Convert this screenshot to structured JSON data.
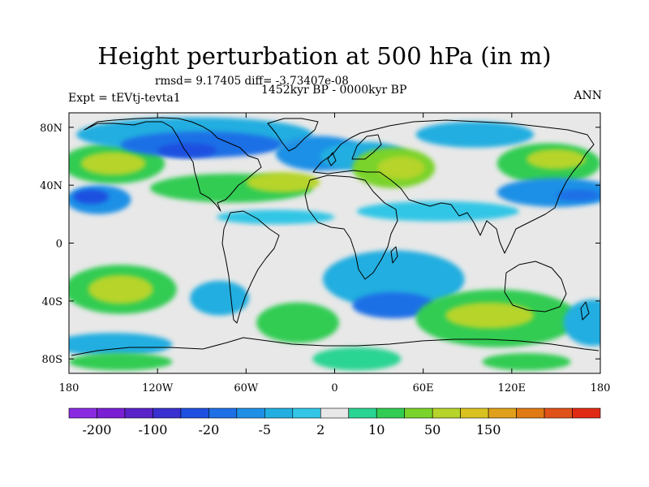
{
  "figure": {
    "title": "Height perturbation at 500 hPa (in m)",
    "stats": "rmsd= 9.17405 diff= -3.73407e-08",
    "period": "1452kyr BP - 0000kyr BP",
    "experiment": "Expt = tEVtj-tevta1",
    "season": "ANN"
  },
  "axes": {
    "x_ticks": [
      {
        "value": -180,
        "label": "180"
      },
      {
        "value": -120,
        "label": "120W"
      },
      {
        "value": -60,
        "label": "60W"
      },
      {
        "value": 0,
        "label": "0"
      },
      {
        "value": 60,
        "label": "60E"
      },
      {
        "value": 120,
        "label": "120E"
      },
      {
        "value": 180,
        "label": "180"
      }
    ],
    "y_ticks": [
      {
        "value": 80,
        "label": "80N"
      },
      {
        "value": 40,
        "label": "40N"
      },
      {
        "value": 0,
        "label": "0"
      },
      {
        "value": -40,
        "label": "40S"
      },
      {
        "value": -80,
        "label": "80S"
      }
    ],
    "lon_range": [
      -180,
      180
    ],
    "lat_range": [
      -90,
      90
    ]
  },
  "colorbar": {
    "colors": [
      "#8a2be2",
      "#7a1fd4",
      "#5a22c9",
      "#3a2fd0",
      "#1f4fe0",
      "#1f6fe6",
      "#1f90e6",
      "#22aee0",
      "#33c6e6",
      "#e8e8e8",
      "#2ad493",
      "#33cc52",
      "#7ad32a",
      "#b6d42a",
      "#d9c21f",
      "#e0a01a",
      "#e07a14",
      "#e0521a",
      "#e02a14"
    ],
    "labels": [
      {
        "index": 1,
        "text": "-200"
      },
      {
        "index": 3,
        "text": "-100"
      },
      {
        "index": 5,
        "text": "-20"
      },
      {
        "index": 7,
        "text": "-5"
      },
      {
        "index": 9,
        "text": "2"
      },
      {
        "index": 11,
        "text": "10"
      },
      {
        "index": 13,
        "text": "50"
      },
      {
        "index": 15,
        "text": "150"
      }
    ]
  },
  "map_colors": {
    "background": "#e8e8e8",
    "coast": "#000000"
  },
  "anomaly_regions": [
    {
      "lon": -150,
      "lat": 55,
      "rlon": 35,
      "rlat": 14,
      "level": 11
    },
    {
      "lon": -150,
      "lat": 55,
      "rlon": 22,
      "rlat": 8,
      "level": 13
    },
    {
      "lon": -160,
      "lat": 30,
      "rlon": 22,
      "rlat": 10,
      "level": 6
    },
    {
      "lon": -165,
      "lat": 32,
      "rlon": 12,
      "rlat": 5,
      "level": 4
    },
    {
      "lon": -95,
      "lat": 75,
      "rlon": 80,
      "rlat": 12,
      "level": 7
    },
    {
      "lon": -90,
      "lat": 68,
      "rlon": 55,
      "rlat": 9,
      "level": 5
    },
    {
      "lon": -100,
      "lat": 64,
      "rlon": 20,
      "rlat": 5,
      "level": 4
    },
    {
      "lon": -70,
      "lat": 38,
      "rlon": 55,
      "rlat": 10,
      "level": 11
    },
    {
      "lon": -35,
      "lat": 42,
      "rlon": 25,
      "rlat": 7,
      "level": 13
    },
    {
      "lon": -10,
      "lat": 62,
      "rlon": 30,
      "rlat": 12,
      "level": 6
    },
    {
      "lon": 20,
      "lat": 60,
      "rlon": 30,
      "rlat": 10,
      "level": 7
    },
    {
      "lon": 40,
      "lat": 52,
      "rlon": 28,
      "rlat": 14,
      "level": 12
    },
    {
      "lon": 45,
      "lat": 52,
      "rlon": 16,
      "rlat": 8,
      "level": 13
    },
    {
      "lon": 95,
      "lat": 75,
      "rlon": 40,
      "rlat": 9,
      "level": 7
    },
    {
      "lon": 145,
      "lat": 55,
      "rlon": 35,
      "rlat": 14,
      "level": 11
    },
    {
      "lon": 150,
      "lat": 58,
      "rlon": 20,
      "rlat": 7,
      "level": 13
    },
    {
      "lon": 150,
      "lat": 35,
      "rlon": 40,
      "rlat": 10,
      "level": 6
    },
    {
      "lon": 165,
      "lat": 33,
      "rlon": 15,
      "rlat": 4,
      "level": 5
    },
    {
      "lon": 70,
      "lat": 22,
      "rlon": 55,
      "rlat": 7,
      "level": 8
    },
    {
      "lon": -40,
      "lat": 18,
      "rlon": 40,
      "rlat": 5,
      "level": 8
    },
    {
      "lon": -145,
      "lat": -32,
      "rlon": 38,
      "rlat": 17,
      "level": 11
    },
    {
      "lon": -145,
      "lat": -32,
      "rlon": 22,
      "rlat": 10,
      "level": 13
    },
    {
      "lon": -78,
      "lat": -38,
      "rlon": 20,
      "rlat": 12,
      "level": 7
    },
    {
      "lon": -25,
      "lat": -55,
      "rlon": 28,
      "rlat": 14,
      "level": 11
    },
    {
      "lon": 40,
      "lat": -25,
      "rlon": 48,
      "rlat": 20,
      "level": 7
    },
    {
      "lon": 40,
      "lat": -43,
      "rlon": 28,
      "rlat": 9,
      "level": 5
    },
    {
      "lon": 110,
      "lat": -52,
      "rlon": 55,
      "rlat": 20,
      "level": 11
    },
    {
      "lon": 105,
      "lat": -50,
      "rlon": 30,
      "rlat": 9,
      "level": 13
    },
    {
      "lon": 175,
      "lat": -55,
      "rlon": 20,
      "rlat": 16,
      "level": 7
    },
    {
      "lon": -150,
      "lat": -70,
      "rlon": 40,
      "rlat": 8,
      "level": 7
    },
    {
      "lon": -145,
      "lat": -82,
      "rlon": 35,
      "rlat": 6,
      "level": 11
    },
    {
      "lon": 15,
      "lat": -80,
      "rlon": 30,
      "rlat": 8,
      "level": 10
    },
    {
      "lon": 130,
      "lat": -82,
      "rlon": 30,
      "rlat": 6,
      "level": 11
    }
  ]
}
